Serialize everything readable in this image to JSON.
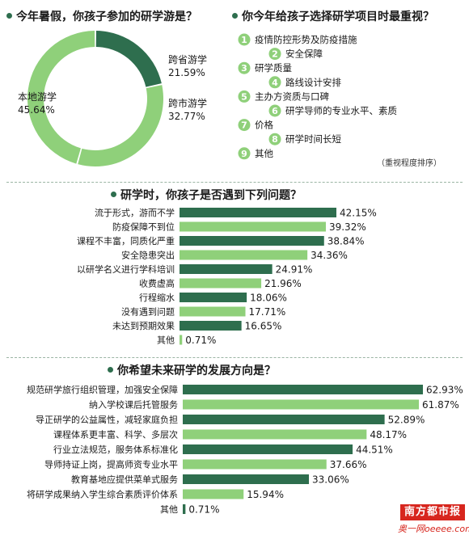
{
  "colors": {
    "dark": "#2e6e4e",
    "light": "#8fd07a",
    "badge": "#8fd07a"
  },
  "sections": {
    "q1": "今年暑假，你孩子参加的研学游是？",
    "q2": "你今年给孩子选择研学项目时最重视？",
    "q3": "研学时，你孩子是否遇到下列问题？",
    "q4": "你希望未来研学的发展方向是？"
  },
  "priority_note": "（重视程度排序）",
  "priority_items": [
    "疫情防控形势及防疫措施",
    "安全保障",
    "研学质量",
    "路线设计安排",
    "主办方资质与口碑",
    "研学导师的专业水平、素质",
    "价格",
    "研学时间长短",
    "其他"
  ],
  "brand": {
    "name": "南方都市报",
    "site": "奥一网oeeee.com"
  },
  "chart_data": [
    {
      "type": "pie",
      "slices": [
        {
          "label": "跨省游学",
          "value": 21.59,
          "value_text": "21.59%",
          "color": "#2e6e4e"
        },
        {
          "label": "跨市游学",
          "value": 32.77,
          "value_text": "32.77%",
          "color": "#8fd07a"
        },
        {
          "label": "本地游学",
          "value": 45.64,
          "value_text": "45.64%",
          "color": "#8fd07a"
        }
      ]
    },
    {
      "type": "bar",
      "orientation": "horizontal",
      "xlim": [
        0,
        42.15
      ],
      "categories": [
        "流于形式，游而不学",
        "防疫保障不到位",
        "课程不丰富，同质化严重",
        "安全隐患突出",
        "以研学名义进行学科培训",
        "收费虚高",
        "行程缩水",
        "没有遇到问题",
        "未达到预期效果",
        "其他"
      ],
      "values": [
        42.15,
        39.32,
        38.84,
        34.36,
        24.91,
        21.96,
        18.06,
        17.71,
        16.65,
        0.71
      ],
      "value_labels": [
        "42.15%",
        "39.32%",
        "38.84%",
        "34.36%",
        "24.91%",
        "21.96%",
        "18.06%",
        "17.71%",
        "16.65%",
        "0.71%"
      ]
    },
    {
      "type": "bar",
      "orientation": "horizontal",
      "xlim": [
        0,
        62.93
      ],
      "categories": [
        "规范研学旅行组织管理，加强安全保障",
        "纳入学校课后托管服务",
        "导正研学的公益属性，减轻家庭负担",
        "课程体系更丰富、科学、多层次",
        "行业立法规范，服务体系标准化",
        "导师持证上岗，提高师资专业水平",
        "教育基地应提供菜单式服务",
        "将研学成果纳入学生综合素质评价体系",
        "其他"
      ],
      "values": [
        62.93,
        61.87,
        52.89,
        48.17,
        44.51,
        37.66,
        33.06,
        15.94,
        0.71
      ],
      "value_labels": [
        "62.93%",
        "61.87%",
        "52.89%",
        "48.17%",
        "44.51%",
        "37.66%",
        "33.06%",
        "15.94%",
        "0.71%"
      ]
    }
  ]
}
